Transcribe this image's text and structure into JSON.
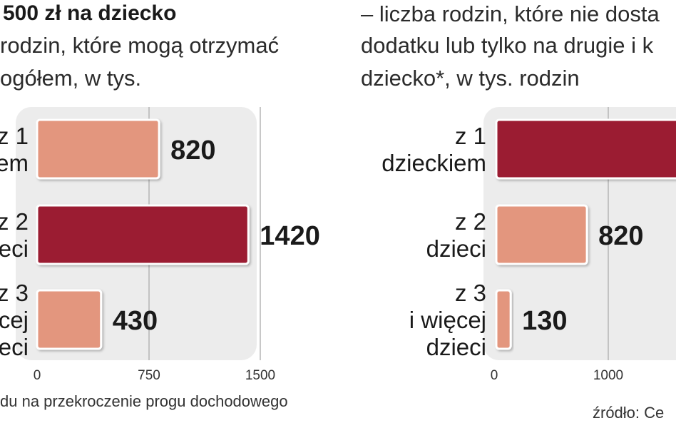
{
  "left_header": {
    "title": "500 zł na dziecko",
    "subtitle_line1": "rodzin, które mogą otrzymać",
    "subtitle_line2": "ogółem, w tys."
  },
  "right_header": {
    "line1": "– liczba rodzin, które nie dosta",
    "line2": "dodatku lub tylko na drugie i k",
    "line3": "dziecko*, w tys. rodzin"
  },
  "footnote": "du na przekroczenie progu dochodowego",
  "source": "źródło: Ce",
  "colors": {
    "dark": "#9b1b30",
    "light": "#e3967e",
    "panel": "#ececec"
  },
  "chart_data": [
    {
      "type": "bar",
      "orientation": "horizontal",
      "categories": [
        [
          "z 1",
          "iem"
        ],
        [
          "z 2",
          "dzieci"
        ],
        [
          "z 3",
          "cej",
          "zieci"
        ]
      ],
      "values": [
        820,
        1420,
        430
      ],
      "highlight": [
        false,
        true,
        false
      ],
      "xlim": [
        0,
        1500
      ],
      "xticks": [
        "0",
        "750",
        "1500"
      ],
      "grid": true
    },
    {
      "type": "bar",
      "orientation": "horizontal",
      "categories": [
        [
          "z 1",
          "dzieckiem"
        ],
        [
          "z 2",
          "dzieci"
        ],
        [
          "z 3",
          "i więcej",
          "dzieci"
        ]
      ],
      "values": [
        null,
        820,
        130
      ],
      "highlight": [
        true,
        false,
        false
      ],
      "xlim": [
        0,
        1000
      ],
      "xticks": [
        "0",
        "1000"
      ],
      "grid": true
    }
  ]
}
